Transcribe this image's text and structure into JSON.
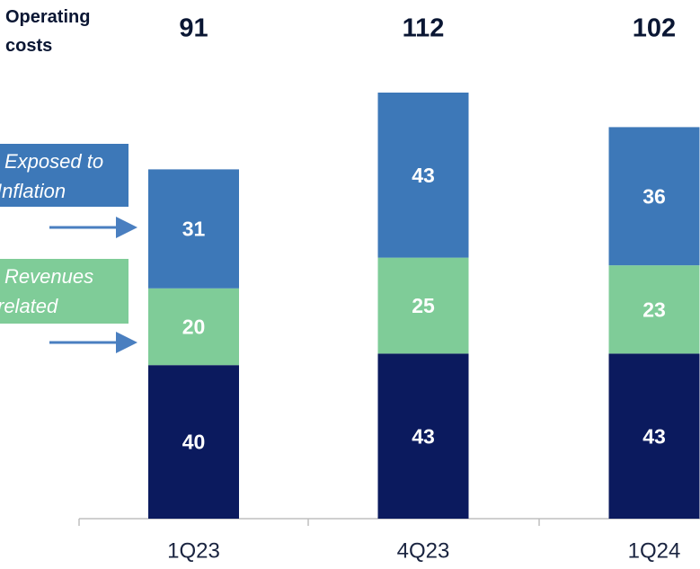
{
  "chart_data": {
    "type": "stacked_bar",
    "title": "Operating costs",
    "categories": [
      "1Q23",
      "4Q23",
      "1Q24"
    ],
    "totals": [
      91,
      112,
      102
    ],
    "series": [
      {
        "color": "#0b1a5e",
        "values": [
          40,
          43,
          43
        ]
      },
      {
        "name": "Revenues related",
        "color": "#7fcc98",
        "values": [
          20,
          25,
          23
        ]
      },
      {
        "name": "Exposed to Inflation",
        "color": "#3d78b8",
        "values": [
          31,
          43,
          36
        ]
      }
    ]
  }
}
